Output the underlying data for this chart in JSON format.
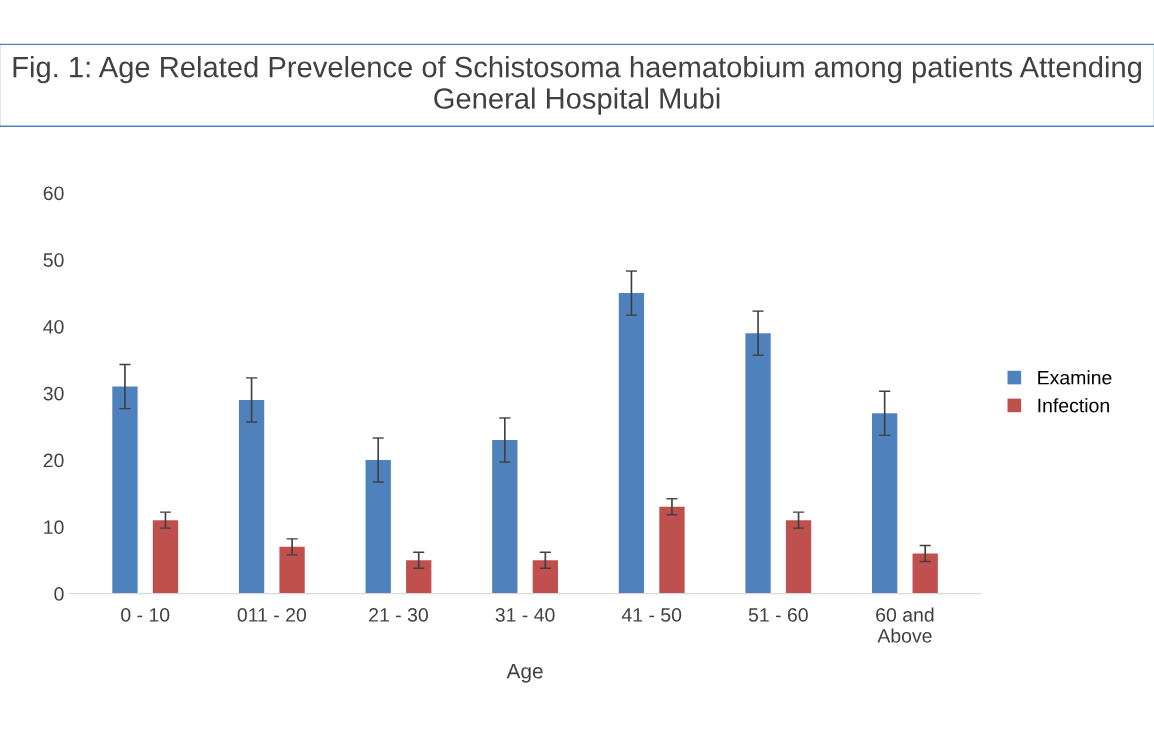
{
  "chart_data": {
    "type": "bar",
    "title": "Fig. 1: Age Related Prevelence of Schistosoma haematobium among patients Attending General Hospital Mubi",
    "xlabel": "Age",
    "categories": [
      "0 - 10",
      "011 - 20",
      "21 - 30",
      "31 - 40",
      "41 - 50",
      "51 - 60",
      "60 and\nAbove"
    ],
    "series": [
      {
        "name": "Examine",
        "color": "#4f81bd",
        "values": [
          31,
          29,
          20,
          23,
          45,
          39,
          27
        ],
        "errors": [
          3.3,
          3.3,
          3.3,
          3.3,
          3.3,
          3.3,
          3.3
        ]
      },
      {
        "name": "Infection",
        "color": "#c0504d",
        "values": [
          11,
          7,
          5,
          5,
          13,
          11,
          6
        ],
        "errors": [
          1.2,
          1.2,
          1.2,
          1.2,
          1.2,
          1.2,
          1.2
        ]
      }
    ],
    "ylim": [
      0,
      60
    ],
    "yticks": [
      0,
      10,
      20,
      30,
      40,
      50,
      60
    ],
    "grid": false,
    "legend": "right"
  }
}
